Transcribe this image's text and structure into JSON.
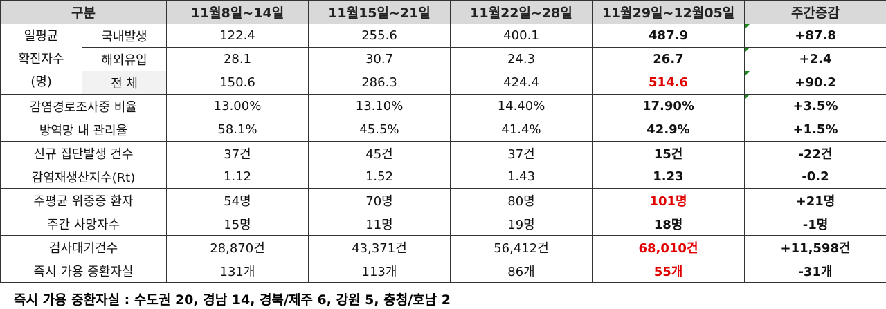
{
  "table": {
    "header": [
      "구분",
      "11월8일~14일",
      "11월15일~21일",
      "11월22일~28일",
      "11월29일~12월05일",
      "주간증감"
    ],
    "group": {
      "lines": [
        "일평균",
        "확진자수",
        "(명)"
      ],
      "rows": [
        {
          "label": "국내발생",
          "cells": [
            "122.4",
            "255.6",
            "400.1",
            "487.9",
            "+87.8"
          ],
          "red": false
        },
        {
          "label": "해외유입",
          "cells": [
            "28.1",
            "30.7",
            "24.3",
            "26.7",
            "+2.4"
          ],
          "red": false
        },
        {
          "label": "전 체",
          "cells": [
            "150.6",
            "286.3",
            "424.4",
            "514.6",
            "+90.2"
          ],
          "red": true
        }
      ]
    },
    "rows": [
      {
        "label": "감염경로조사중 비율",
        "cells": [
          "13.00%",
          "13.10%",
          "14.40%",
          "17.90%",
          "+3.5%"
        ],
        "red": false
      },
      {
        "label": "방역망 내 관리율",
        "cells": [
          "58.1%",
          "45.5%",
          "41.4%",
          "42.9%",
          "+1.5%"
        ],
        "red": false
      },
      {
        "label": "신규 집단발생 건수",
        "cells": [
          "37건",
          "45건",
          "37건",
          "15건",
          "-22건"
        ],
        "red": false
      },
      {
        "label": "감염재생산지수(Rt)",
        "cells": [
          "1.12",
          "1.52",
          "1.43",
          "1.23",
          "-0.2"
        ],
        "red": false
      },
      {
        "label": "주평균 위중증 환자",
        "cells": [
          "54명",
          "70명",
          "80명",
          "101명",
          "+21명"
        ],
        "red": true
      },
      {
        "label": "주간 사망자수",
        "cells": [
          "15명",
          "11명",
          "19명",
          "18명",
          "-1명"
        ],
        "red": false
      },
      {
        "label": "검사대기건수",
        "cells": [
          "28,870건",
          "43,371건",
          "56,412건",
          "68,010건",
          "+11,598건"
        ],
        "red": true
      },
      {
        "label": "즉시 가용 중환자실",
        "cells": [
          "131개",
          "113개",
          "86개",
          "55개",
          "-31개"
        ],
        "red": true
      }
    ]
  },
  "footer": "즉시 가용 중환자실 : 수도권 20, 경남 14, 경북/제주 6, 강원 5, 충청/호남 2"
}
